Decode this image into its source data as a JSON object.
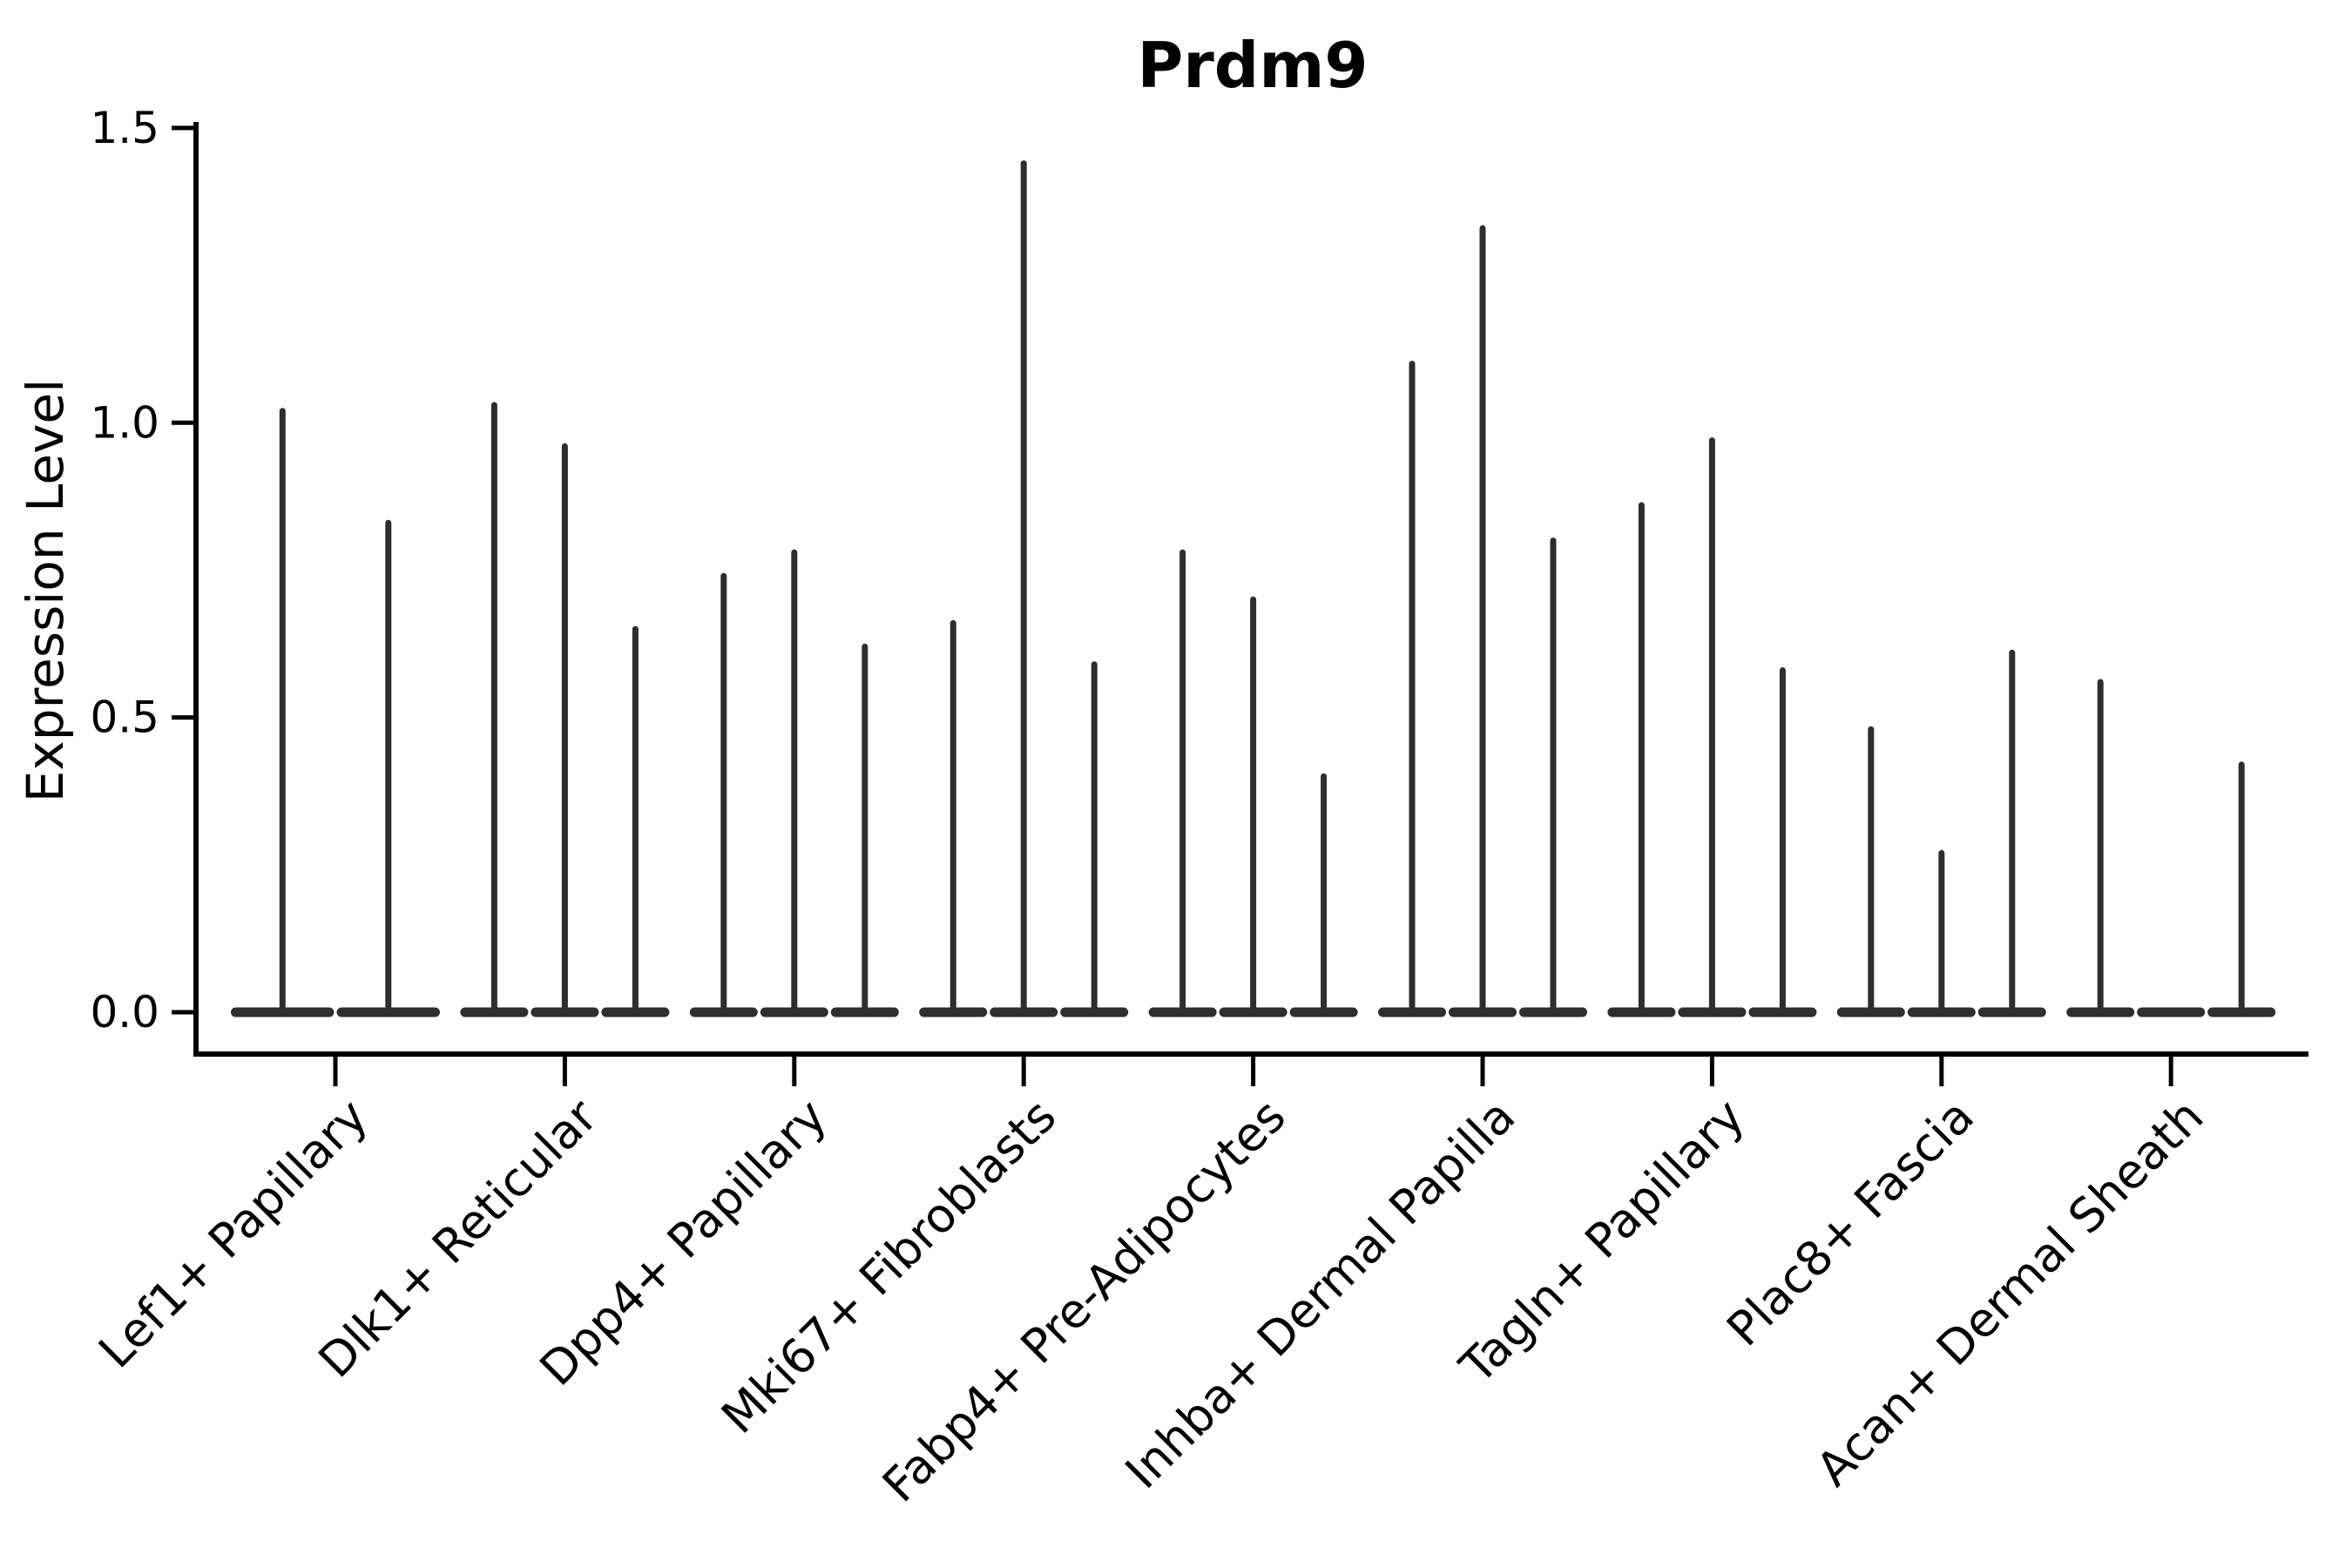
{
  "figure": {
    "title": "Prdm9",
    "background_color": "#ffffff",
    "violin_color": "#2e2e2e",
    "axis_color": "#000000",
    "text_color": "#000000"
  },
  "chart_data": {
    "type": "violin",
    "title": "Prdm9",
    "xlabel": "",
    "ylabel": "Expression Level",
    "ylim": [
      0,
      1.5
    ],
    "ytick_labels": [
      "0.0",
      "0.5",
      "1.0",
      "1.5"
    ],
    "ytick_values": [
      0,
      0.5,
      1.0,
      1.5
    ],
    "grid": false,
    "legend_position": "none",
    "x_tick_rotation_deg": 45,
    "categories": [
      "Lef1+ Papillary",
      "Dlk1+ Reticular",
      "Dpp4+ Papillary",
      "Mki67+ Fibroblasts",
      "Fabp4+ Pre-Adipocytes",
      "Inhba+ Dermal Papilla",
      "Tagln+ Papillary",
      "Plac8+ Fascia",
      "Acan+ Dermal Sheath"
    ],
    "series": [
      {
        "name": "Lef1+ Papillary",
        "violin_max_values": [
          1.02,
          0.83
        ]
      },
      {
        "name": "Dlk1+ Reticular",
        "violin_max_values": [
          1.03,
          0.96,
          0.65
        ]
      },
      {
        "name": "Dpp4+ Papillary",
        "violin_max_values": [
          0.74,
          0.78,
          0.62
        ]
      },
      {
        "name": "Mki67+ Fibroblasts",
        "violin_max_values": [
          0.66,
          1.44,
          0.59
        ]
      },
      {
        "name": "Fabp4+ Pre-Adipocytes",
        "violin_max_values": [
          0.78,
          0.7,
          0.4
        ]
      },
      {
        "name": "Inhba+ Dermal Papilla",
        "violin_max_values": [
          1.1,
          1.33,
          0.8
        ]
      },
      {
        "name": "Tagln+ Papillary",
        "violin_max_values": [
          0.86,
          0.97,
          0.58
        ]
      },
      {
        "name": "Plac8+ Fascia",
        "violin_max_values": [
          0.48,
          0.27,
          0.61
        ]
      },
      {
        "name": "Acan+ Dermal Sheath",
        "violin_max_values": [
          0.56,
          0,
          0.42
        ]
      }
    ]
  }
}
